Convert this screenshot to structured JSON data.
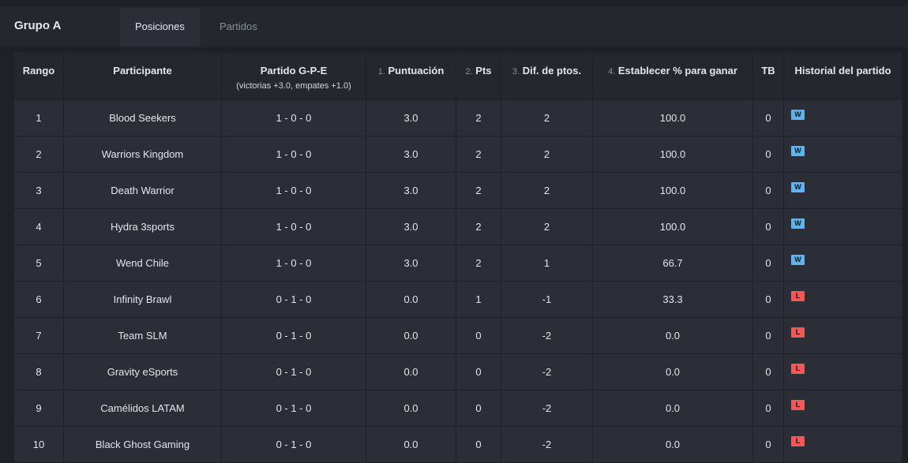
{
  "header": {
    "title": "Grupo A",
    "tabs": [
      "Posiciones",
      "Partidos"
    ]
  },
  "table": {
    "columns": [
      {
        "label": "Rango"
      },
      {
        "label": "Participante"
      },
      {
        "label": "Partido G-P-E",
        "note": "(victorias +3.0, empates +1.0)"
      },
      {
        "number": "1.",
        "label": "Puntuación"
      },
      {
        "number": "2.",
        "label": "Pts"
      },
      {
        "number": "3.",
        "label": "Dif. de ptos."
      },
      {
        "number": "4.",
        "label": "Establecer % para ganar"
      },
      {
        "label": "TB"
      },
      {
        "label": "Historial del partido"
      }
    ],
    "rows": [
      [
        "1",
        "Blood Seekers",
        "1 - 0 - 0",
        "3.0",
        "2",
        "2",
        "100.0",
        "0",
        "W"
      ],
      [
        "2",
        "Warriors Kingdom",
        "1 - 0 - 0",
        "3.0",
        "2",
        "2",
        "100.0",
        "0",
        "W"
      ],
      [
        "3",
        "Death Warrior",
        "1 - 0 - 0",
        "3.0",
        "2",
        "2",
        "100.0",
        "0",
        "W"
      ],
      [
        "4",
        "Hydra 3sports",
        "1 - 0 - 0",
        "3.0",
        "2",
        "2",
        "100.0",
        "0",
        "W"
      ],
      [
        "5",
        "Wend Chile",
        "1 - 0 - 0",
        "3.0",
        "2",
        "1",
        "66.7",
        "0",
        "W"
      ],
      [
        "6",
        "Infinity Brawl",
        "0 - 1 - 0",
        "0.0",
        "1",
        "-1",
        "33.3",
        "0",
        "L"
      ],
      [
        "7",
        "Team SLM",
        "0 - 1 - 0",
        "0.0",
        "0",
        "-2",
        "0.0",
        "0",
        "L"
      ],
      [
        "8",
        "Gravity eSports",
        "0 - 1 - 0",
        "0.0",
        "0",
        "-2",
        "0.0",
        "0",
        "L"
      ],
      [
        "9",
        "Camélidos LATAM",
        "0 - 1 - 0",
        "0.0",
        "0",
        "-2",
        "0.0",
        "0",
        "L"
      ],
      [
        "10",
        "Black Ghost Gaming",
        "0 - 1 - 0",
        "0.0",
        "0",
        "-2",
        "0.0",
        "0",
        "L"
      ]
    ]
  }
}
